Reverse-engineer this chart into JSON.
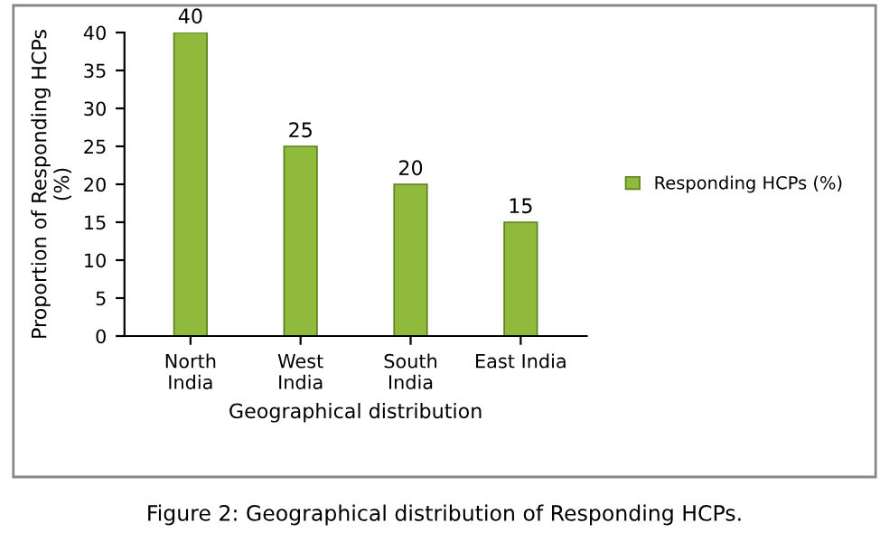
{
  "chart_data": {
    "type": "bar",
    "categories": [
      "North\nIndia",
      "West\nIndia",
      "South\nIndia",
      "East India"
    ],
    "series": [
      {
        "name": "Responding HCPs (%)",
        "color": "#8fba3c",
        "values": [
          40,
          25,
          20,
          15
        ]
      }
    ],
    "xlabel": "Geographical distribution",
    "ylabel": "Proportion of Responding HCPs\n(%)",
    "ylim": [
      0,
      40
    ],
    "yticks": [
      0,
      5,
      10,
      15,
      20,
      25,
      30,
      35,
      40
    ],
    "data_labels": true,
    "legend": "right",
    "grid": false,
    "annotations": [
      "Figure 2: Geographical distribution of Responding HCPs."
    ]
  }
}
